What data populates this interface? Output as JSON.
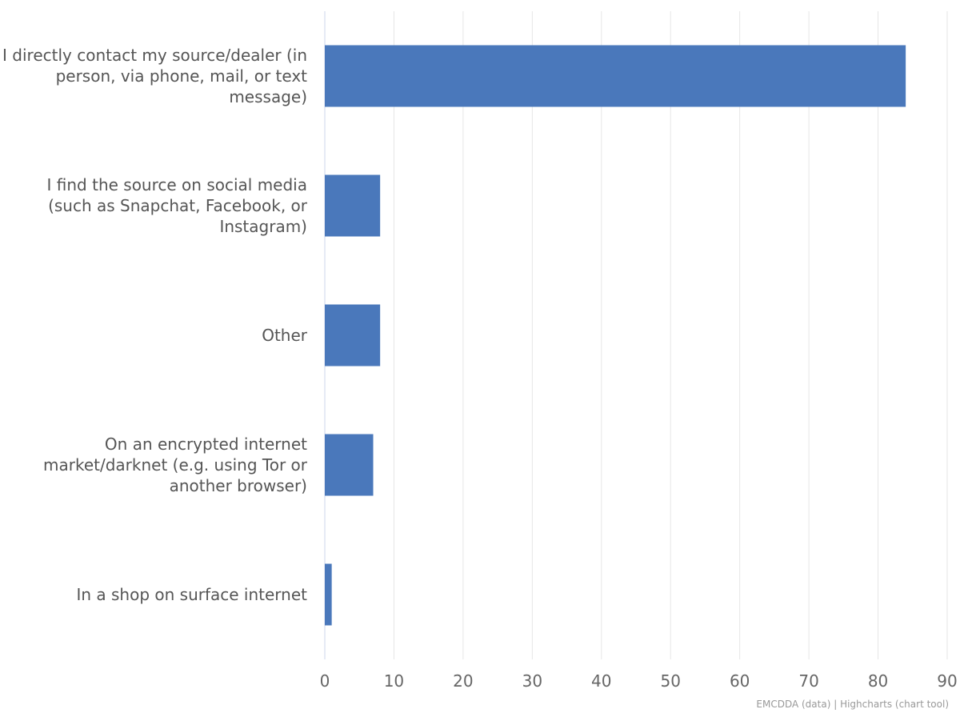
{
  "chart_data": {
    "type": "bar",
    "orientation": "horizontal",
    "categories": [
      "I directly contact my source/dealer (in person, via phone, mail, or text message)",
      "I find the source on social media (such as Snapchat, Facebook, or Instagram)",
      "Other",
      "On an encrypted internet market/darknet (e.g. using Tor or another browser)",
      "In a shop on surface internet"
    ],
    "values": [
      84,
      8,
      8,
      7,
      1
    ],
    "xlim": [
      0,
      90
    ],
    "xticks": [
      0,
      10,
      20,
      30,
      40,
      50,
      60,
      70,
      80,
      90
    ],
    "grid": true,
    "legend": "none",
    "bar_color": "#4a78bb"
  },
  "credits": "EMCDDA (data) | Highcharts (chart tool)"
}
